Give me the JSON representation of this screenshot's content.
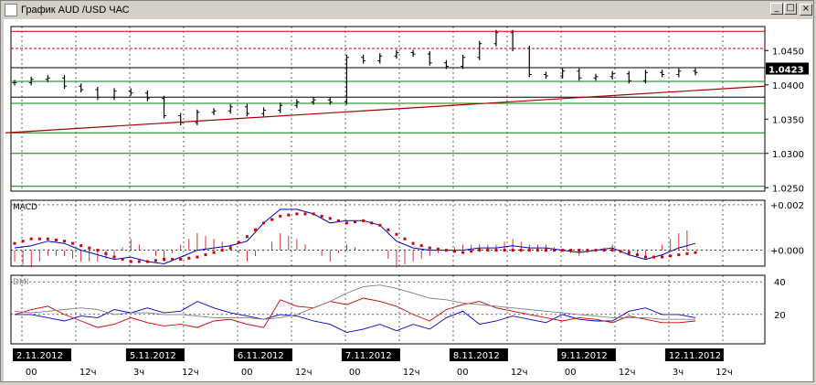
{
  "window": {
    "title": "График AUD /USD  ЧАС",
    "buttons": {
      "minimize": "_",
      "maximize": "□",
      "close": "×"
    }
  },
  "chart_data": [
    {
      "type": "line",
      "title": "",
      "panel": "price",
      "ylim": [
        1.0245,
        1.0485
      ],
      "yticks": [
        "1.0450",
        "1.0400",
        "1.0350",
        "1.0300",
        "1.0250"
      ],
      "current_price": "1.0423",
      "horizontal_lines": {
        "red": [
          1.0478,
          1.0453
        ],
        "green": [
          1.0405,
          1.0373,
          1.033,
          1.03,
          1.0252
        ],
        "black": [
          1.0425,
          1.0382
        ]
      },
      "trendline": {
        "from": [
          0,
          1.033
        ],
        "to": [
          82,
          1.0395
        ]
      },
      "x": [
        0,
        2,
        4,
        6,
        8,
        10,
        12,
        14,
        16,
        18,
        20,
        22,
        24,
        26,
        28,
        30,
        32,
        34,
        36,
        38,
        40,
        42,
        44,
        46,
        48,
        50,
        52,
        54,
        56,
        58,
        60,
        62,
        64,
        66,
        68,
        70,
        72,
        74,
        76,
        78,
        80,
        82
      ],
      "close": [
        1.0403,
        1.0408,
        1.041,
        1.0398,
        1.0393,
        1.0382,
        1.0391,
        1.0388,
        1.038,
        1.0355,
        1.0345,
        1.036,
        1.0362,
        1.0368,
        1.0358,
        1.0363,
        1.037,
        1.0375,
        1.0378,
        1.0375,
        1.044,
        1.0435,
        1.0442,
        1.0447,
        1.0445,
        1.0432,
        1.0427,
        1.044,
        1.046,
        1.0476,
        1.0453,
        1.0415,
        1.0413,
        1.042,
        1.041,
        1.0412,
        1.0416,
        1.0406,
        1.0418,
        1.0415,
        1.042,
        1.0418
      ]
    },
    {
      "type": "line",
      "panel": "MACD",
      "label": "MACD",
      "ylim": [
        -0.0007,
        0.0022
      ],
      "yticks": [
        "+0.002",
        "+0.000"
      ],
      "series": [
        {
          "name": "",
          "color": "#0000cc",
          "values": [
            0.0001,
            0.0002,
            0.0004,
            0.0003,
            0.0,
            -0.0002,
            -0.0004,
            -0.0003,
            -0.0005,
            -0.0006,
            -0.0003,
            0.0,
            0.0001,
            0.0002,
            0.0004,
            0.0012,
            0.0018,
            0.0018,
            0.0016,
            0.0012,
            0.0013,
            0.0013,
            0.0011,
            0.0004,
            0.0001,
            0.0,
            0.0,
            0.0,
            0.0001,
            0.0001,
            0.0002,
            0.0001,
            0.0001,
            0.0,
            -0.0001,
            0.0,
            0.0001,
            -0.0002,
            -0.0004,
            -0.0002,
            0.0001,
            0.0003
          ]
        },
        {
          "name": "",
          "color": "#cc0000",
          "values": [
            0.0003,
            0.0005,
            0.0005,
            0.0004,
            0.0002,
            0.0,
            -0.0003,
            -0.0005,
            -0.0005,
            -0.0004,
            -0.0004,
            -0.0003,
            -0.0001,
            0.0001,
            0.0006,
            0.0012,
            0.0015,
            0.0016,
            0.0016,
            0.0014,
            0.0012,
            0.0013,
            0.0011,
            0.0007,
            0.0003,
            0.0001,
            0.0,
            -0.0001,
            0.0,
            0.0,
            0.0,
            0.0,
            0.0,
            0.0,
            0.0,
            0.0,
            0.0,
            -0.0001,
            -0.0003,
            -0.0003,
            -0.0002,
            -0.0001
          ]
        }
      ]
    },
    {
      "type": "line",
      "panel": "DMI",
      "label": "DMI",
      "ylim": [
        2,
        44
      ],
      "yticks": [
        "40",
        "20"
      ],
      "series": [
        {
          "name": "",
          "color": "#0000cc",
          "values": [
            20,
            20,
            18,
            16,
            19,
            18,
            23,
            21,
            24,
            21,
            22,
            28,
            24,
            21,
            19,
            17,
            20,
            19,
            16,
            14,
            9,
            11,
            14,
            10,
            14,
            11,
            18,
            22,
            14,
            16,
            19,
            17,
            15,
            20,
            17,
            16,
            16,
            22,
            24,
            20,
            20,
            18
          ]
        },
        {
          "name": "",
          "color": "#cc0000",
          "values": [
            20,
            23,
            25,
            20,
            16,
            12,
            14,
            18,
            15,
            13,
            14,
            12,
            16,
            17,
            14,
            12,
            29,
            25,
            24,
            28,
            26,
            30,
            28,
            25,
            20,
            16,
            23,
            26,
            28,
            24,
            22,
            20,
            18,
            16,
            18,
            17,
            15,
            19,
            17,
            15,
            15,
            16
          ]
        },
        {
          "name": "",
          "color": "#808080",
          "values": [
            22,
            21,
            22,
            23,
            24,
            23,
            20,
            21,
            21,
            20,
            20,
            19,
            18,
            18,
            18,
            17,
            18,
            20,
            24,
            28,
            33,
            37,
            38,
            36,
            33,
            30,
            29,
            27,
            26,
            25,
            24,
            23,
            22,
            21,
            20,
            19,
            18,
            18,
            18,
            17,
            17,
            17
          ]
        }
      ]
    }
  ],
  "x_axis": {
    "dates": [
      {
        "label": "2.11.2012",
        "at": 0
      },
      {
        "label": "5.11.2012",
        "at": 10.5
      },
      {
        "label": "6.11.2012",
        "at": 20.5
      },
      {
        "label": "7.11.2012",
        "at": 30.5
      },
      {
        "label": "8.11.2012",
        "at": 40.5
      },
      {
        "label": "9.11.2012",
        "at": 50.5
      },
      {
        "label": "12.11.2012",
        "at": 60.5
      }
    ],
    "hours": [
      {
        "label": "00",
        "at": 0.5
      },
      {
        "label": "12ч",
        "at": 5.5
      },
      {
        "label": "3ч",
        "at": 10.5
      },
      {
        "label": "12ч",
        "at": 15
      },
      {
        "label": "00",
        "at": 20.5
      },
      {
        "label": "12ч",
        "at": 25.5
      },
      {
        "label": "00",
        "at": 30.5
      },
      {
        "label": "12ч",
        "at": 35.5
      },
      {
        "label": "00",
        "at": 40.5
      },
      {
        "label": "12ч",
        "at": 45.5
      },
      {
        "label": "00",
        "at": 50.5
      },
      {
        "label": "12ч",
        "at": 55.5
      },
      {
        "label": "3ч",
        "at": 60.5
      },
      {
        "label": "12ч",
        "at": 64.5
      }
    ]
  }
}
